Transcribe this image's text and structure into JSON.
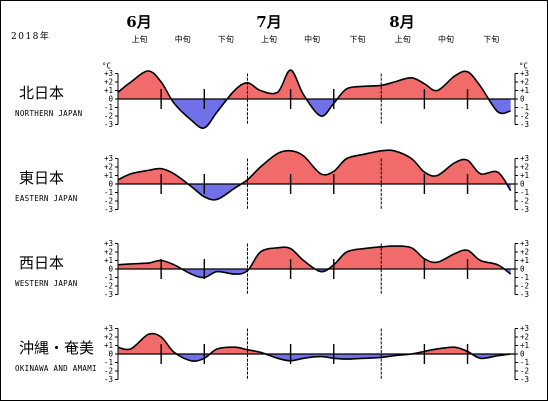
{
  "chart_data": {
    "type": "area",
    "year_label": "2018年",
    "months": [
      "6月",
      "7月",
      "8月"
    ],
    "dekads": [
      "上旬",
      "中旬",
      "下旬",
      "上旬",
      "中旬",
      "下旬",
      "上旬",
      "中旬",
      "下旬"
    ],
    "unit_label": "°C",
    "ylim": [
      -3,
      3
    ],
    "yticks": [
      "+3",
      "+2",
      "+1",
      "0",
      "-1",
      "-2",
      "-3"
    ],
    "x": [
      "6/1",
      "6/4",
      "6/8",
      "6/11",
      "6/14",
      "6/18",
      "6/21",
      "6/24",
      "6/28",
      "7/1",
      "7/4",
      "7/8",
      "7/11",
      "7/14",
      "7/18",
      "7/21",
      "7/24",
      "7/28",
      "8/1",
      "8/4",
      "8/8",
      "8/11",
      "8/14",
      "8/18",
      "8/21",
      "8/24",
      "8/28",
      "8/31"
    ],
    "positive_color": "#f26b6b",
    "negative_color": "#7070e8",
    "series": [
      {
        "name": "北日本",
        "name_en": "NORTHERN JAPAN",
        "values": [
          0.8,
          2.0,
          3.3,
          2.0,
          -0.5,
          -2.5,
          -3.4,
          -1.5,
          1.0,
          1.9,
          1.0,
          0.8,
          3.4,
          0.5,
          -2.0,
          -0.5,
          1.2,
          1.5,
          1.6,
          2.0,
          2.5,
          1.8,
          1.0,
          2.7,
          3.2,
          1.5,
          -1.5,
          -1.4
        ]
      },
      {
        "name": "東日本",
        "name_en": "EASTERN JAPAN",
        "values": [
          0.5,
          1.2,
          1.6,
          1.8,
          1.2,
          -0.3,
          -1.5,
          -1.8,
          -0.5,
          0.5,
          2.0,
          3.6,
          3.9,
          3.3,
          1.2,
          1.5,
          3.0,
          3.5,
          3.9,
          3.9,
          3.0,
          1.4,
          1.0,
          2.5,
          2.8,
          1.2,
          1.4,
          -0.8
        ]
      },
      {
        "name": "西日本",
        "name_en": "WESTERN JAPAN",
        "values": [
          0.5,
          0.6,
          0.7,
          1.0,
          0.5,
          -0.6,
          -1.0,
          -0.3,
          -0.6,
          -0.2,
          2.0,
          2.5,
          2.4,
          1.0,
          -0.3,
          0.5,
          2.0,
          2.4,
          2.6,
          2.7,
          2.5,
          1.2,
          0.8,
          1.8,
          2.2,
          1.0,
          0.5,
          -0.6
        ]
      },
      {
        "name": "沖縄・奄美",
        "name_en": "OKINAWA AND AMAMI",
        "values": [
          0.8,
          0.6,
          2.3,
          2.0,
          0.2,
          -0.8,
          -0.5,
          0.6,
          0.8,
          0.5,
          0.2,
          -0.5,
          -0.8,
          -0.5,
          -0.3,
          -0.5,
          -0.6,
          -0.5,
          -0.4,
          -0.2,
          0.0,
          0.3,
          0.6,
          0.8,
          0.3,
          -0.5,
          -0.2,
          0.0
        ]
      }
    ]
  }
}
